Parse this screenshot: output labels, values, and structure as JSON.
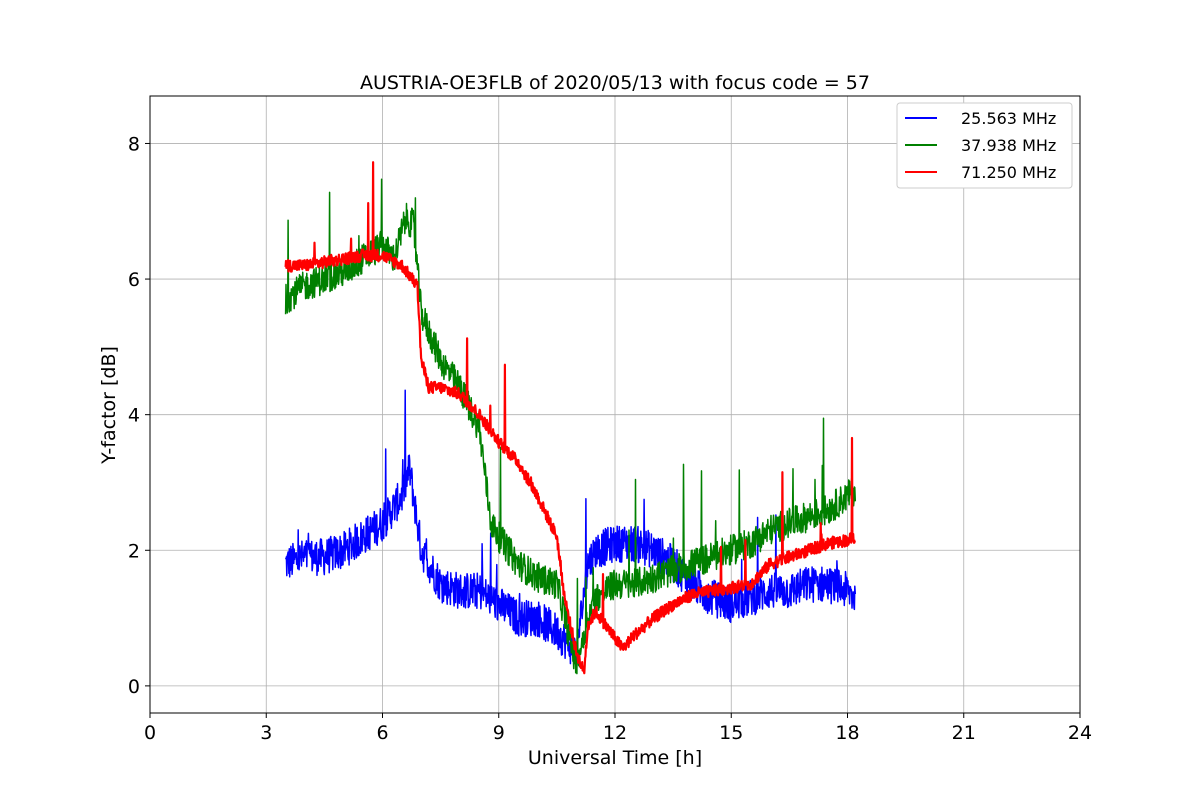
{
  "chart_data": {
    "type": "line",
    "title": "AUSTRIA-OE3FLB of 2020/05/13 with focus code = 57",
    "xlabel": "Universal Time [h]",
    "ylabel": "Y-factor [dB]",
    "xlim": [
      0,
      24
    ],
    "ylim": [
      -0.4,
      8.7
    ],
    "xticks": [
      0,
      3,
      6,
      9,
      12,
      15,
      18,
      21,
      24
    ],
    "yticks": [
      0,
      2,
      4,
      6,
      8
    ],
    "grid": true,
    "legend_position": "top-right",
    "series": [
      {
        "name": "25.563 MHz",
        "color": "#0000ff",
        "points": [
          [
            3.5,
            1.8
          ],
          [
            4.0,
            1.9
          ],
          [
            4.5,
            1.9
          ],
          [
            5.0,
            2.0
          ],
          [
            5.5,
            2.2
          ],
          [
            6.0,
            2.4
          ],
          [
            6.5,
            2.8
          ],
          [
            6.7,
            3.2
          ],
          [
            7.0,
            2.0
          ],
          [
            7.5,
            1.5
          ],
          [
            8.0,
            1.4
          ],
          [
            8.5,
            1.4
          ],
          [
            9.0,
            1.2
          ],
          [
            9.5,
            1.0
          ],
          [
            10.0,
            1.0
          ],
          [
            10.5,
            0.8
          ],
          [
            11.0,
            0.5
          ],
          [
            11.3,
            1.8
          ],
          [
            11.5,
            2.0
          ],
          [
            12.0,
            2.1
          ],
          [
            12.5,
            2.1
          ],
          [
            13.0,
            2.0
          ],
          [
            13.5,
            1.8
          ],
          [
            14.0,
            1.5
          ],
          [
            14.5,
            1.3
          ],
          [
            15.0,
            1.2
          ],
          [
            15.5,
            1.3
          ],
          [
            16.0,
            1.4
          ],
          [
            16.5,
            1.4
          ],
          [
            17.0,
            1.5
          ],
          [
            17.5,
            1.5
          ],
          [
            18.0,
            1.4
          ],
          [
            18.2,
            1.3
          ]
        ]
      },
      {
        "name": "37.938 MHz",
        "color": "#008000",
        "points": [
          [
            3.5,
            5.7
          ],
          [
            4.0,
            5.9
          ],
          [
            4.5,
            6.0
          ],
          [
            5.0,
            6.1
          ],
          [
            5.5,
            6.3
          ],
          [
            6.0,
            6.5
          ],
          [
            6.3,
            6.3
          ],
          [
            6.6,
            6.9
          ],
          [
            6.8,
            6.8
          ],
          [
            7.0,
            5.5
          ],
          [
            7.5,
            4.8
          ],
          [
            8.0,
            4.4
          ],
          [
            8.5,
            3.8
          ],
          [
            8.8,
            2.4
          ],
          [
            9.0,
            2.2
          ],
          [
            9.5,
            1.8
          ],
          [
            10.0,
            1.6
          ],
          [
            10.5,
            1.5
          ],
          [
            11.0,
            0.3
          ],
          [
            11.3,
            1.0
          ],
          [
            11.5,
            1.3
          ],
          [
            12.0,
            1.5
          ],
          [
            12.5,
            1.5
          ],
          [
            13.0,
            1.6
          ],
          [
            13.5,
            1.7
          ],
          [
            14.0,
            1.8
          ],
          [
            14.5,
            1.9
          ],
          [
            15.0,
            2.0
          ],
          [
            15.5,
            2.1
          ],
          [
            16.0,
            2.3
          ],
          [
            16.5,
            2.4
          ],
          [
            17.0,
            2.5
          ],
          [
            17.5,
            2.6
          ],
          [
            18.0,
            2.8
          ],
          [
            18.2,
            2.9
          ]
        ]
      },
      {
        "name": "71.250 MHz",
        "color": "#ff0000",
        "points": [
          [
            3.5,
            6.2
          ],
          [
            4.0,
            6.2
          ],
          [
            4.5,
            6.25
          ],
          [
            5.0,
            6.3
          ],
          [
            5.5,
            6.35
          ],
          [
            6.0,
            6.35
          ],
          [
            6.5,
            6.2
          ],
          [
            6.9,
            5.9
          ],
          [
            7.0,
            4.8
          ],
          [
            7.2,
            4.4
          ],
          [
            7.5,
            4.4
          ],
          [
            8.0,
            4.3
          ],
          [
            8.5,
            4.0
          ],
          [
            9.0,
            3.6
          ],
          [
            9.5,
            3.3
          ],
          [
            10.0,
            2.8
          ],
          [
            10.5,
            2.2
          ],
          [
            10.7,
            1.3
          ],
          [
            11.0,
            0.5
          ],
          [
            11.2,
            0.2
          ],
          [
            11.3,
            0.9
          ],
          [
            11.5,
            1.1
          ],
          [
            12.0,
            0.7
          ],
          [
            12.2,
            0.55
          ],
          [
            12.5,
            0.75
          ],
          [
            13.0,
            1.0
          ],
          [
            13.5,
            1.2
          ],
          [
            14.0,
            1.35
          ],
          [
            14.5,
            1.4
          ],
          [
            15.0,
            1.45
          ],
          [
            15.5,
            1.5
          ],
          [
            16.0,
            1.8
          ],
          [
            16.5,
            1.9
          ],
          [
            17.0,
            2.0
          ],
          [
            17.5,
            2.1
          ],
          [
            18.0,
            2.15
          ],
          [
            18.2,
            2.2
          ]
        ]
      }
    ]
  }
}
